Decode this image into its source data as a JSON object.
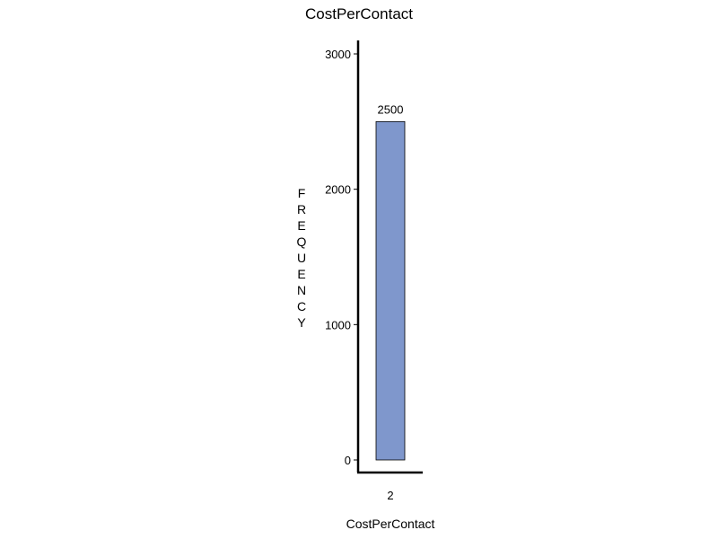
{
  "chart_data": {
    "type": "bar",
    "title": "CostPerContact",
    "xlabel": "CostPerContact",
    "ylabel": "FREQUENCY",
    "categories": [
      "2"
    ],
    "values": [
      2500
    ],
    "data_labels": [
      "2500"
    ],
    "ylim": [
      0,
      3000
    ],
    "yticks": [
      0,
      1000,
      2000,
      3000
    ],
    "ytick_labels": [
      "0",
      "1000",
      "2000",
      "3000"
    ],
    "grid": false,
    "legend": "none",
    "bar_color": "#7f97cc",
    "bar_edge_color": "#000000"
  }
}
